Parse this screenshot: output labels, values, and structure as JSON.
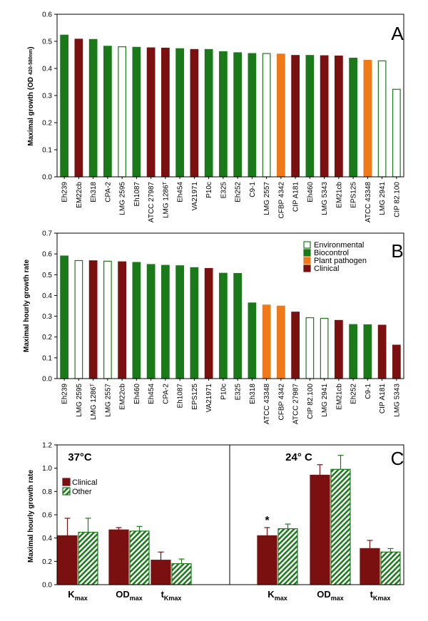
{
  "colors": {
    "environmental": "#ffffff",
    "environmental_stroke": "#1a7a1a",
    "biocontrol": "#1a7a1a",
    "plant_pathogen": "#f07a1a",
    "clinical": "#7a1010",
    "other_stripe": "#1a7a1a",
    "axis": "#000000"
  },
  "panels": {
    "A": {
      "letter": "A"
    },
    "B": {
      "letter": "B"
    },
    "C": {
      "letter": "C",
      "temp_left": "37°C",
      "temp_right": "24° C",
      "significance": "*"
    }
  },
  "chart_data": [
    {
      "panel": "A",
      "type": "bar",
      "ylabel": "Maximal growth (OD 420-580nm )",
      "ylabel_main": "Maximal growth (OD",
      "ylabel_sub": "420-580nm",
      "ylabel_end": ")",
      "ylim": [
        0,
        0.6
      ],
      "yticks": [
        "0.0",
        "0.1",
        "0.2",
        "0.3",
        "0.4",
        "0.5",
        "0.6"
      ],
      "categories": [
        "Eh239",
        "EM22cb",
        "Eh318",
        "CPA-2",
        "LMG 2595",
        "Eh1087",
        "ATCC 27987",
        "LMG 1286ᵀ",
        "Eh454",
        "VA21971",
        "P10c",
        "E325",
        "Eh252",
        "C9-1",
        "LMG 2557",
        "CFBP 4342",
        "CIP A181",
        "Eh460",
        "LMG 5343",
        "EM21cb",
        "EPS125",
        "ATCC 43348",
        "LMG 2941",
        "CIP 82.100"
      ],
      "values": [
        0.523,
        0.508,
        0.507,
        0.482,
        0.48,
        0.478,
        0.476,
        0.475,
        0.473,
        0.47,
        0.47,
        0.462,
        0.458,
        0.455,
        0.455,
        0.453,
        0.448,
        0.448,
        0.447,
        0.446,
        0.438,
        0.43,
        0.428,
        0.323
      ],
      "groups": [
        "biocontrol",
        "clinical",
        "biocontrol",
        "biocontrol",
        "environmental",
        "biocontrol",
        "clinical",
        "clinical",
        "biocontrol",
        "clinical",
        "biocontrol",
        "biocontrol",
        "biocontrol",
        "biocontrol",
        "environmental",
        "plant_pathogen",
        "clinical",
        "biocontrol",
        "clinical",
        "clinical",
        "biocontrol",
        "plant_pathogen",
        "environmental",
        "environmental"
      ]
    },
    {
      "panel": "B",
      "type": "bar",
      "ylabel": "Maximal hourly growth rate",
      "ylim": [
        0,
        0.7
      ],
      "yticks": [
        "0.0",
        "0.1",
        "0.2",
        "0.3",
        "0.4",
        "0.5",
        "0.6",
        "0.7"
      ],
      "legend": [
        {
          "key": "environmental",
          "label": "Environmental"
        },
        {
          "key": "biocontrol",
          "label": "Biocontrol"
        },
        {
          "key": "plant_pathogen",
          "label": "Plant pathogen"
        },
        {
          "key": "clinical",
          "label": "Clinical"
        }
      ],
      "legend_position": "top-right",
      "categories": [
        "Eh239",
        "LMG 2595",
        "LMG 1286ᵀ",
        "LMG 2557",
        "EM22cb",
        "Eh460",
        "Eh454",
        "CPA-2",
        "Eh1087",
        "EPS125",
        "VA21971",
        "P10c",
        "E325",
        "Eh318",
        "ATCC 43348",
        "CFBP 4342",
        "ATCC 27987",
        "CIP 82.100",
        "LMG 2941",
        "EM21cb",
        "Eh252",
        "C9-1",
        "CIP A181",
        "LMG 5343"
      ],
      "values": [
        0.59,
        0.568,
        0.567,
        0.565,
        0.562,
        0.559,
        0.549,
        0.545,
        0.543,
        0.534,
        0.53,
        0.507,
        0.506,
        0.364,
        0.354,
        0.349,
        0.32,
        0.293,
        0.29,
        0.28,
        0.26,
        0.259,
        0.257,
        0.161
      ],
      "groups": [
        "biocontrol",
        "environmental",
        "clinical",
        "environmental",
        "clinical",
        "biocontrol",
        "biocontrol",
        "biocontrol",
        "biocontrol",
        "biocontrol",
        "clinical",
        "biocontrol",
        "biocontrol",
        "biocontrol",
        "plant_pathogen",
        "plant_pathogen",
        "clinical",
        "environmental",
        "environmental",
        "clinical",
        "biocontrol",
        "biocontrol",
        "clinical",
        "clinical"
      ]
    },
    {
      "panel": "C",
      "type": "bar",
      "ylabel": "Maximal hourly growth rate",
      "ylim": [
        0,
        1.2
      ],
      "yticks": [
        "0.0",
        "0.2",
        "0.4",
        "0.6",
        "0.8",
        "1.0",
        "1.2"
      ],
      "legend": [
        {
          "key": "clinical",
          "label": "Clinical"
        },
        {
          "key": "other",
          "label": "Other"
        }
      ],
      "legend_position": "top-left",
      "sections": [
        {
          "temperature": "37°C",
          "groups": [
            {
              "label_main": "K",
              "label_sub": "max",
              "clinical": 0.42,
              "clinical_err": 0.15,
              "other": 0.45,
              "other_err": 0.12
            },
            {
              "label_main": "OD",
              "label_sub": "max",
              "clinical": 0.47,
              "clinical_err": 0.02,
              "other": 0.46,
              "other_err": 0.04
            },
            {
              "label_main": "t",
              "label_sub": "Kmax",
              "clinical": 0.21,
              "clinical_err": 0.07,
              "other": 0.18,
              "other_err": 0.04
            }
          ]
        },
        {
          "temperature": "24° C",
          "groups": [
            {
              "label_main": "K",
              "label_sub": "max",
              "clinical": 0.42,
              "clinical_err": 0.07,
              "other": 0.48,
              "other_err": 0.04
            },
            {
              "label_main": "OD",
              "label_sub": "max",
              "clinical": 0.94,
              "clinical_err": 0.09,
              "other": 0.99,
              "other_err": 0.12
            },
            {
              "label_main": "t",
              "label_sub": "Kmax",
              "clinical": 0.31,
              "clinical_err": 0.07,
              "other": 0.28,
              "other_err": 0.03
            }
          ]
        }
      ]
    }
  ]
}
